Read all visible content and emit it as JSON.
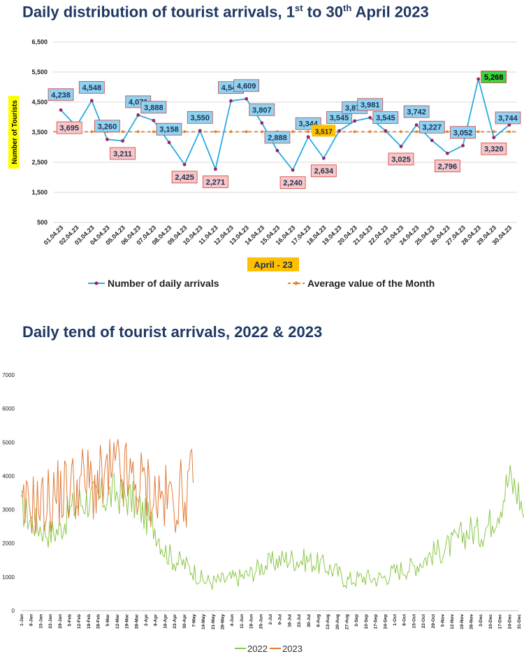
{
  "chart1_title": {
    "pre": "Daily distribution of tourist arrivals, 1",
    "sup1": "st",
    "mid": " to 30",
    "sup2": "th",
    "post": " April 2023"
  },
  "chart2_title": "Daily tend of tourist arrivals, 2022 & 2023",
  "colors": {
    "title": "#1f3864",
    "line": "#29abe2",
    "avg": "#e8822a",
    "point": "#a02060",
    "label_blue": "#8fd3f0",
    "label_pink": "#f7c6c6",
    "label_green": "#3fd13f",
    "label_yellow": "#ffc000",
    "s2022": "#8cc84a",
    "s2023": "#e07b39"
  },
  "chart_data": [
    {
      "type": "line",
      "title": "Daily distribution of tourist arrivals, 1st to 30th April 2023",
      "ylabel": "Number of Tourists",
      "xlabel": "April - 23",
      "ylim": [
        500,
        6500
      ],
      "yticks": [
        "500",
        "1,500",
        "2,500",
        "3,500",
        "4,500",
        "5,500",
        "6,500"
      ],
      "categories": [
        "01.04.23",
        "02.04.23",
        "03.04.23",
        "04.04.23",
        "05.04.23",
        "06.04.23",
        "07.04.23",
        "08.04.23",
        "09.04.23",
        "10.04.23",
        "11.04.23",
        "12.04.23",
        "13.04.23",
        "14.04.23",
        "15.04.23",
        "16.04.23",
        "17.04.23",
        "18.04.23",
        "19.04.23",
        "20.04.23",
        "21.04.23",
        "22.04.23",
        "23.04.23",
        "24.04.23",
        "25.04.23",
        "26.04.23",
        "27.04.23",
        "28.04.23",
        "29.04.23",
        "30.04.23"
      ],
      "series": [
        {
          "name": "Number of daily arrivals",
          "values": [
            4238,
            3695,
            4548,
            3260,
            3211,
            4071,
            3888,
            3158,
            2425,
            3550,
            2271,
            4542,
            4609,
            3807,
            2888,
            2240,
            3344,
            2634,
            3545,
            3874,
            3981,
            3545,
            3025,
            3742,
            3227,
            2796,
            3052,
            5268,
            3320,
            3744
          ]
        },
        {
          "name": "Average value of the Month",
          "values": 3517
        }
      ],
      "labels": [
        "4,238",
        "3,695",
        "4,548",
        "3,260",
        "3,211",
        "4,071",
        "3,888",
        "3,158",
        "2,425",
        "3,550",
        "2,271",
        "4,542",
        "4,609",
        "3,807",
        "2,888",
        "2,240",
        "3,344",
        "2,634",
        "3,545",
        "3,874",
        "3,981",
        "3,545",
        "3,025",
        "3,742",
        "3,227",
        "2,796",
        "3,052",
        "5,268",
        "3,320",
        "3,744"
      ],
      "avg_label": "3,517",
      "legend": "bottom",
      "grid": true
    },
    {
      "type": "line",
      "title": "Daily tend of tourist arrivals, 2022 & 2023",
      "ylim": [
        0,
        7000
      ],
      "yticks": [
        "0",
        "1000",
        "2000",
        "3000",
        "4000",
        "5000",
        "6000",
        "7000"
      ],
      "xticks": [
        "1-Jan",
        "8-Jan",
        "15-Jan",
        "22-Jan",
        "29-Jan",
        "5-Feb",
        "12-Feb",
        "19-Feb",
        "26-Feb",
        "5-Mar",
        "12-Mar",
        "19-Mar",
        "26-Mar",
        "2-Apr",
        "9-Apr",
        "16-Apr",
        "23-Apr",
        "30-Apr",
        "7-May",
        "14-May",
        "21-May",
        "28-May",
        "4-Jun",
        "11-Jun",
        "18-Jun",
        "25-Jun",
        "2-Jul",
        "9-Jul",
        "16-Jul",
        "23-Jul",
        "30-Jul",
        "6-Aug",
        "13-Aug",
        "20-Aug",
        "27-Aug",
        "3-Sep",
        "10-Sep",
        "17-Sep",
        "24-Sep",
        "1-Oct",
        "8-Oct",
        "15-Oct",
        "22-Oct",
        "29-Oct",
        "5-Nov",
        "12-Nov",
        "19-Nov",
        "26-Nov",
        "3-Dec",
        "10-Dec",
        "17-Dec",
        "24-Dec",
        "31-Dec"
      ],
      "legend": "bottom",
      "grid": false,
      "series": [
        {
          "name": "2022",
          "weekly": [
            3100,
            2700,
            2500,
            2300,
            2400,
            2900,
            3200,
            3300,
            3300,
            3400,
            3500,
            3400,
            3200,
            2800,
            2500,
            1800,
            1500,
            1400,
            1200,
            900,
            850,
            900,
            950,
            1000,
            1100,
            1300,
            1400,
            1500,
            1550,
            1500,
            1500,
            1400,
            1300,
            1150,
            900,
            950,
            1000,
            950,
            1000,
            1150,
            1250,
            1300,
            1500,
            1700,
            1800,
            1950,
            2200,
            2400,
            2300,
            2600,
            3100,
            3900,
            3500
          ],
          "weekly_end": 2400
        },
        {
          "name": "2023",
          "weekly": [
            2800,
            3200,
            3100,
            3300,
            3500,
            3600,
            3800,
            3800,
            3700,
            3900,
            4100,
            3900,
            3700,
            3700,
            3400,
            3300,
            3300,
            3500
          ],
          "weekly_end": 3744
        }
      ]
    }
  ]
}
